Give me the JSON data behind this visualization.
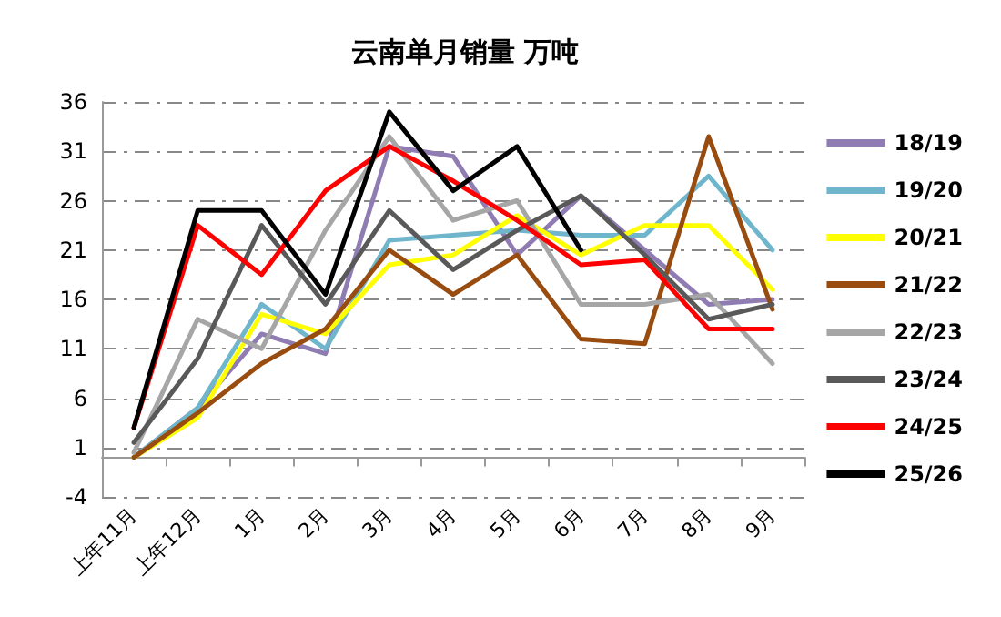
{
  "chart_data": {
    "type": "line",
    "title": "云南单月销量 万吨",
    "categories": [
      "上年11月",
      "上年12月",
      "1月",
      "2月",
      "3月",
      "4月",
      "5月",
      "6月",
      "7月",
      "8月",
      "9月"
    ],
    "ylim": [
      -4,
      36
    ],
    "yticks": [
      -4,
      1,
      6,
      11,
      16,
      21,
      26,
      31,
      36
    ],
    "grid": "y",
    "legend": "right",
    "marker": "none",
    "line_style": "solid",
    "series": [
      {
        "name": "18/19",
        "color": "#8f7cb3",
        "values": [
          0,
          5,
          12.5,
          10.5,
          31.5,
          30.5,
          20.5,
          26.5,
          21,
          15.5,
          16
        ]
      },
      {
        "name": "19/20",
        "color": "#6fb6cc",
        "values": [
          0,
          5,
          15.5,
          11,
          22,
          22.5,
          23,
          22.5,
          22.5,
          28.5,
          21
        ]
      },
      {
        "name": "20/21",
        "color": "#ffff00",
        "values": [
          0,
          4,
          14.5,
          12.5,
          19.5,
          20.5,
          24.5,
          20.5,
          23.5,
          23.5,
          17
        ]
      },
      {
        "name": "21/22",
        "color": "#994c0f",
        "values": [
          0,
          4.5,
          9.5,
          13,
          21,
          16.5,
          20.5,
          12,
          11.5,
          32.5,
          15
        ]
      },
      {
        "name": "22/23",
        "color": "#a6a6a6",
        "values": [
          0.5,
          14,
          11,
          23,
          32.5,
          24,
          26,
          15.5,
          15.5,
          16.5,
          9.5
        ]
      },
      {
        "name": "23/24",
        "color": "#595959",
        "values": [
          1.5,
          10,
          23.5,
          15.5,
          25,
          19,
          23,
          26.5,
          20.5,
          14,
          15.5
        ]
      },
      {
        "name": "24/25",
        "color": "#ff0000",
        "values": [
          3,
          23.5,
          18.5,
          27,
          31.5,
          28,
          24,
          19.5,
          20,
          13,
          13
        ]
      },
      {
        "name": "25/26",
        "color": "#000000",
        "values": [
          3,
          25,
          25,
          16.5,
          35,
          27,
          31.5,
          21,
          null,
          null,
          null
        ]
      }
    ]
  }
}
